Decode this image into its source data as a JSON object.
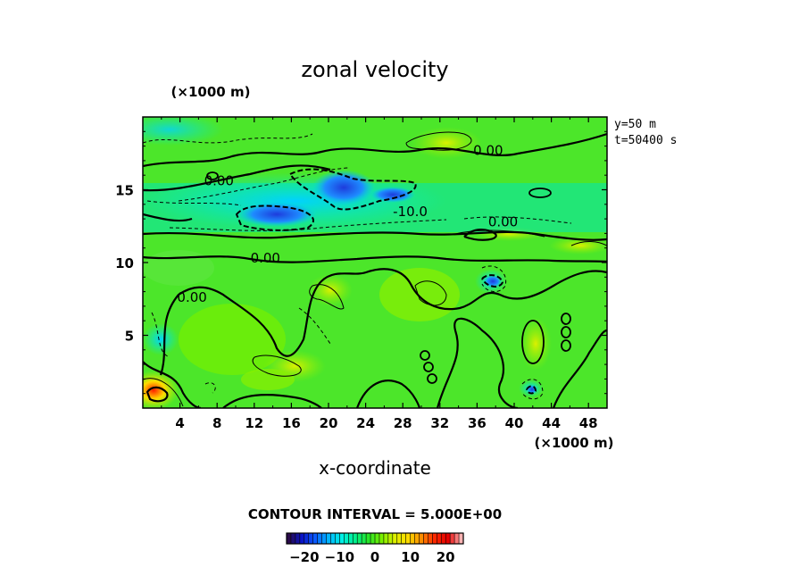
{
  "chart_data": {
    "type": "heatmap",
    "title": "zonal velocity",
    "xlabel": "x-coordinate",
    "x_unit": "(×1000 m)",
    "y_unit": "(×1000 m)",
    "xlim": [
      0,
      50
    ],
    "ylim": [
      0,
      20
    ],
    "x_ticks": [
      4,
      8,
      12,
      16,
      20,
      24,
      28,
      32,
      36,
      40,
      44,
      48
    ],
    "y_ticks": [
      5,
      10,
      15
    ],
    "info_lines": [
      "y=50 m",
      "t=50400 s"
    ],
    "contour_interval_text": "CONTOUR INTERVAL = 5.000E+00",
    "contour_labels": [
      {
        "text": "0.00",
        "x": 8.2,
        "y": 15.3
      },
      {
        "text": "0.00",
        "x": 37.2,
        "y": 17.4
      },
      {
        "text": "-10.0",
        "x": 28.8,
        "y": 13.2
      },
      {
        "text": "0.00",
        "x": 38.8,
        "y": 12.5
      },
      {
        "text": "0.00",
        "x": 13.2,
        "y": 10.0
      },
      {
        "text": "0.00",
        "x": 5.3,
        "y": 7.3
      }
    ],
    "colorbar": {
      "range": [
        -25,
        25
      ],
      "ticks": [
        -20,
        -10,
        0,
        10,
        20
      ],
      "tick_labels": [
        "−20",
        "−10",
        "0",
        "10",
        "20"
      ]
    },
    "colormap": [
      "#2a0a4a",
      "#0a14c8",
      "#0a5aff",
      "#00b4ff",
      "#00f0e6",
      "#00f08c",
      "#28e628",
      "#78f000",
      "#dcf000",
      "#ffdc00",
      "#ff8c00",
      "#ff2800",
      "#e60000",
      "#ffb4b4"
    ],
    "field_description_values": {
      "background_mean": 2,
      "jet_core_min": -16,
      "band_y_range": [
        11,
        19
      ]
    }
  }
}
